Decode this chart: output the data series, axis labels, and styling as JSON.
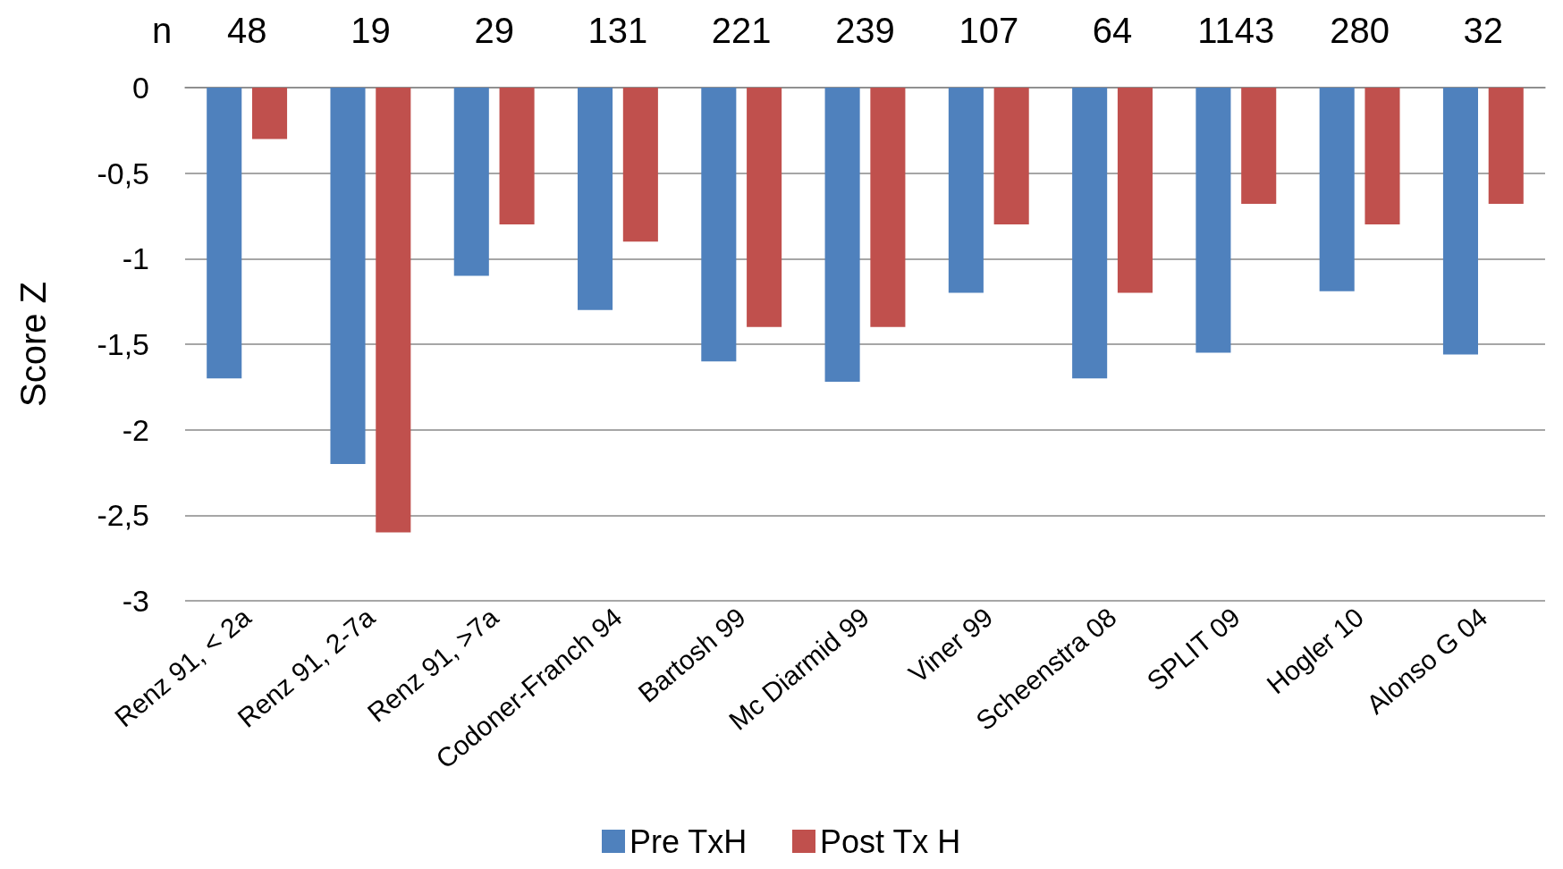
{
  "chart_data": {
    "type": "bar",
    "categories": [
      "Renz 91, < 2a",
      "Renz 91, 2-7a",
      "Renz 91, >7a",
      "Codoner-Franch 94",
      "Bartosh 99",
      "Mc Diarmid 99",
      "Viner 99",
      "Scheenstra 08",
      "SPLIT 09",
      "Hogler 10",
      "Alonso G 04"
    ],
    "series": [
      {
        "name": "Pre TxH",
        "color": "#4f81bd",
        "values": [
          -1.7,
          -2.2,
          -1.1,
          -1.3,
          -1.6,
          -1.72,
          -1.2,
          -1.7,
          -1.55,
          -1.19,
          -1.56
        ]
      },
      {
        "name": "Post Tx H",
        "color": "#c0504d",
        "values": [
          -0.3,
          -2.6,
          -0.8,
          -0.9,
          -1.4,
          -1.4,
          -0.8,
          -1.2,
          -0.68,
          -0.8,
          -0.68
        ]
      }
    ],
    "ylabel": "Score Z",
    "ylim": [
      -3,
      0
    ],
    "yticks": [
      {
        "value": -3,
        "label": "-3"
      },
      {
        "value": -2.5,
        "label": "-2,5"
      },
      {
        "value": -2,
        "label": "-2"
      },
      {
        "value": -1.5,
        "label": "-1,5"
      },
      {
        "value": -1,
        "label": "-1"
      },
      {
        "value": -0.5,
        "label": "-0,5"
      },
      {
        "value": 0,
        "label": "0"
      }
    ],
    "annotations": [
      "n",
      "48",
      "19",
      "29",
      "131",
      "221",
      "239",
      "107",
      "64",
      "1143",
      "280",
      "32"
    ],
    "grid": "y",
    "legend": "bottom"
  }
}
